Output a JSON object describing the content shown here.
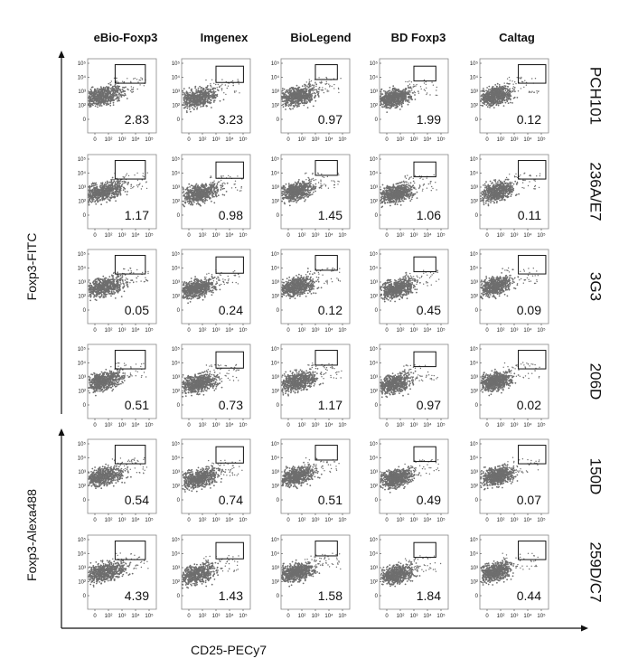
{
  "chart_data": {
    "type": "scatter",
    "columns": [
      "eBio-Foxp3",
      "Imgenex",
      "BioLegend",
      "BD Foxp3",
      "Caltag"
    ],
    "rows": [
      "PCH101",
      "236A/E7",
      "3G3",
      "206D",
      "150D",
      "259D/C7"
    ],
    "values": [
      [
        "2.83",
        "3.23",
        "0.97",
        "1.99",
        "0.12"
      ],
      [
        "1.17",
        "0.98",
        "1.45",
        "1.06",
        "0.11"
      ],
      [
        "0.05",
        "0.24",
        "0.12",
        "0.45",
        "0.09"
      ],
      [
        "0.51",
        "0.73",
        "1.17",
        "0.97",
        "0.02"
      ],
      [
        "0.54",
        "0.74",
        "0.51",
        "0.49",
        "0.07"
      ],
      [
        "4.39",
        "1.43",
        "1.58",
        "1.84",
        "0.44"
      ]
    ],
    "xlabel": "CD25-PECy7",
    "ylabel_groups": [
      "Foxp3-FITC",
      "Foxp3-Alexa488"
    ],
    "x_tick_labels": [
      "0",
      "10²",
      "10³",
      "10⁴",
      "10⁵"
    ],
    "y_tick_labels": [
      "10⁵",
      "10⁴",
      "10³",
      "10²",
      "0"
    ],
    "colors": {
      "dots": "#6e6e6e",
      "gate": "#111111",
      "axis": "#111111"
    }
  }
}
